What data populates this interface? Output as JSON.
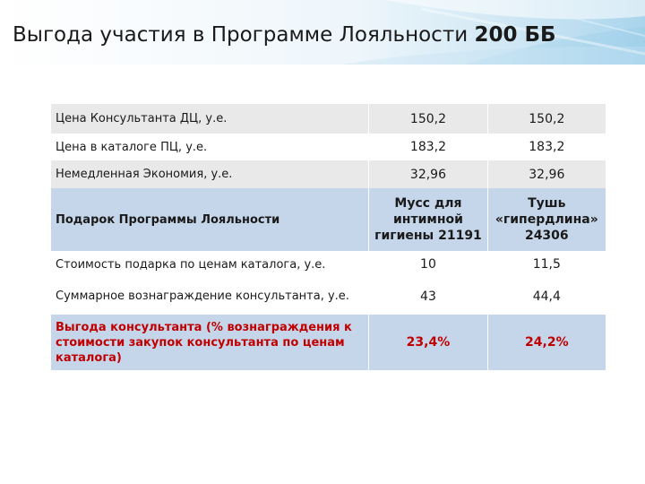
{
  "slide": {
    "title": "Выгода участия в Программе Лояльности ",
    "title_bold": "200 ББ"
  },
  "table": {
    "rows": [
      {
        "label": "Цена Консультанта ДЦ, у.е.",
        "v1": "150,2",
        "v2": "150,2"
      },
      {
        "label": "Цена в каталоге ПЦ, у.е.",
        "v1": "183,2",
        "v2": "183,2"
      },
      {
        "label": "Немедленная Экономия, у.е.",
        "v1": "32,96",
        "v2": "32,96"
      },
      {
        "label": "Подарок Программы Лояльности",
        "v1_lines": [
          "Мусс для",
          "интимной",
          "гигиены 21191"
        ],
        "v2_lines": [
          "Тушь",
          "«гипердлина»",
          "24306"
        ]
      },
      {
        "label": "Стоимость подарка по ценам каталога, у.е.",
        "v1": "10",
        "v2": "11,5"
      },
      {
        "label": "Суммарное вознаграждение консультанта, у.е.",
        "v1": "43",
        "v2": "44,4"
      },
      {
        "label": "Выгода консультанта (% вознаграждения к стоимости закупок консультанта по ценам каталога)",
        "v1": "23,4%",
        "v2": "24,2%"
      }
    ]
  },
  "colors": {
    "highlight_text": "#c00000",
    "row_gray": "#e9e9ea",
    "row_blue": "#c6d6ea"
  }
}
